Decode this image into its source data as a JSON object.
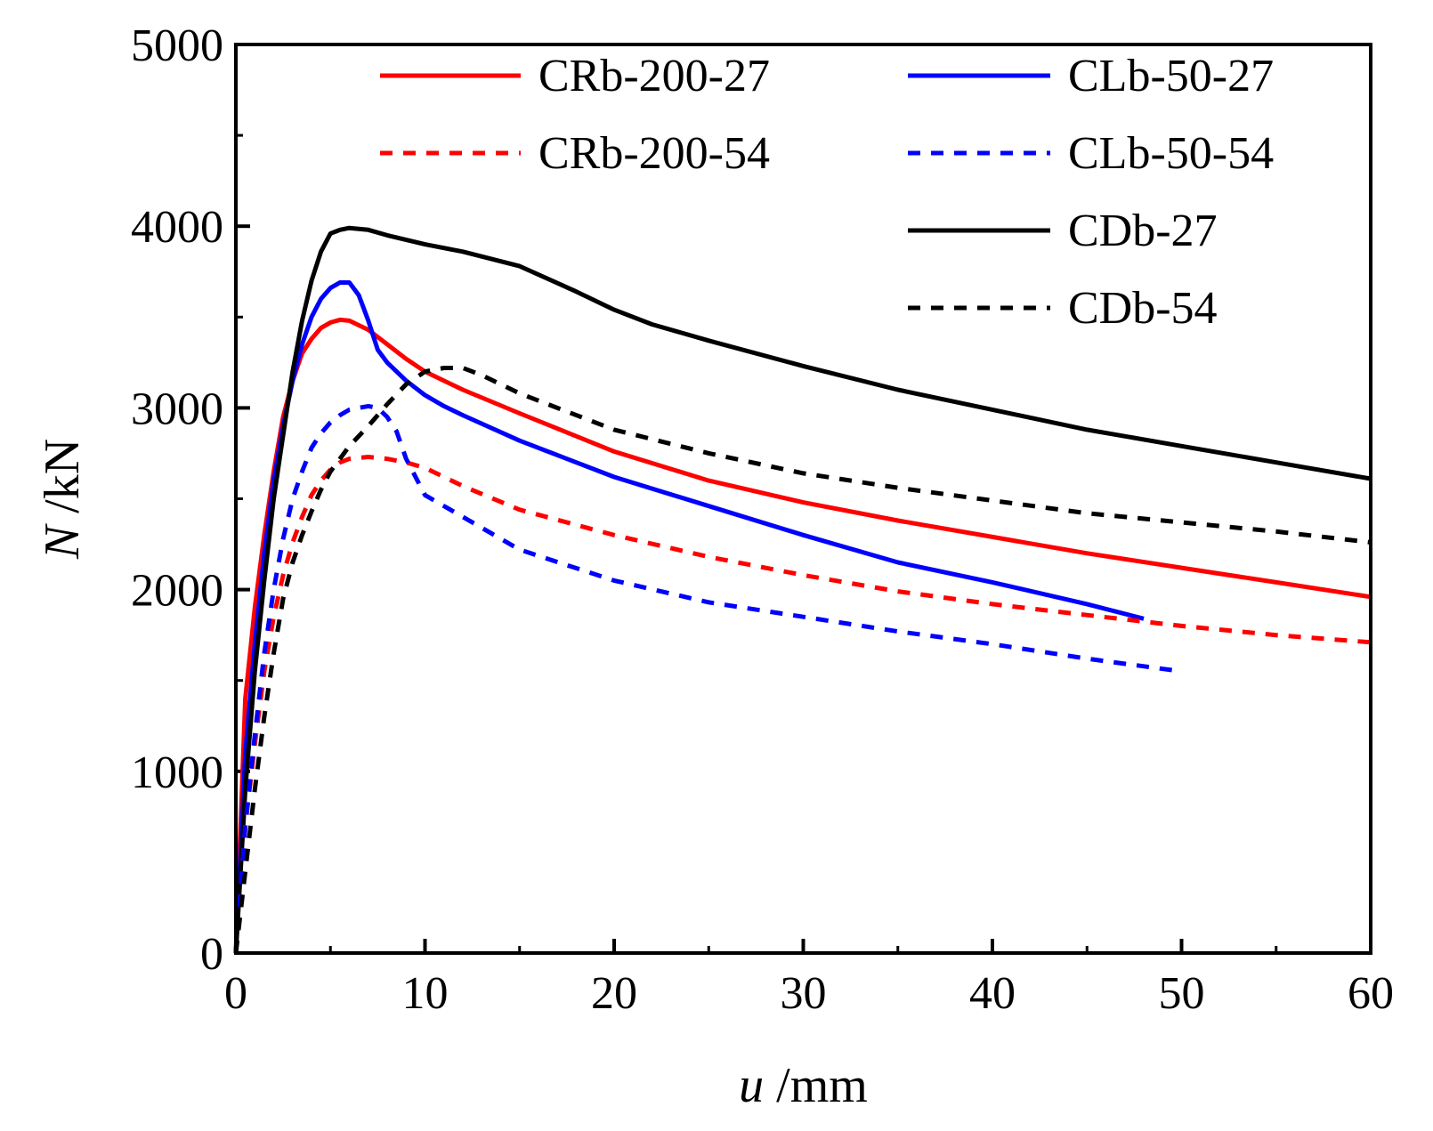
{
  "chart_data": {
    "type": "line",
    "title": "",
    "xlabel": {
      "symbol": "u",
      "unit": " /mm"
    },
    "ylabel": {
      "symbol": "N",
      "unit": " /kN"
    },
    "xlim": [
      0,
      60
    ],
    "ylim": [
      0,
      5000
    ],
    "xticks": [
      0,
      10,
      20,
      30,
      40,
      50,
      60
    ],
    "yticks": [
      0,
      1000,
      2000,
      3000,
      4000,
      5000
    ],
    "xtick_labels": [
      "0",
      "10",
      "20",
      "30",
      "40",
      "50",
      "60"
    ],
    "ytick_labels": [
      "0",
      "1000",
      "2000",
      "3000",
      "4000",
      "5000"
    ],
    "grid": false,
    "legend_position": "top-right",
    "series": [
      {
        "name": "CRb-200-27",
        "color": "#ff0000",
        "style": "solid",
        "x": [
          0,
          0.5,
          1,
          1.5,
          2,
          2.5,
          3,
          3.5,
          4,
          4.5,
          5,
          5.5,
          6,
          7,
          8,
          9,
          10,
          12,
          15,
          20,
          25,
          30,
          35,
          40,
          45,
          50,
          55,
          60
        ],
        "y": [
          0,
          1400,
          1900,
          2300,
          2650,
          2950,
          3150,
          3300,
          3380,
          3440,
          3470,
          3485,
          3480,
          3430,
          3350,
          3270,
          3200,
          3100,
          2970,
          2760,
          2600,
          2480,
          2380,
          2290,
          2200,
          2120,
          2040,
          1960
        ]
      },
      {
        "name": "CLb-50-27",
        "color": "#0000ff",
        "style": "solid",
        "x": [
          0,
          0.5,
          1,
          1.5,
          2,
          2.5,
          3,
          3.5,
          4,
          4.5,
          5,
          5.5,
          6,
          6.5,
          7,
          7.5,
          8,
          9,
          10,
          11,
          12,
          15,
          20,
          25,
          30,
          35,
          40,
          45,
          48
        ],
        "y": [
          0,
          1100,
          1700,
          2200,
          2600,
          2900,
          3150,
          3350,
          3500,
          3600,
          3660,
          3690,
          3690,
          3620,
          3480,
          3320,
          3250,
          3150,
          3070,
          3010,
          2960,
          2820,
          2620,
          2460,
          2300,
          2150,
          2040,
          1920,
          1840
        ]
      },
      {
        "name": "CDb-27",
        "color": "#000000",
        "style": "solid",
        "x": [
          0,
          0.5,
          1,
          1.5,
          2,
          2.5,
          3,
          3.5,
          4,
          4.5,
          5,
          5.5,
          6,
          7,
          8,
          10,
          12,
          15,
          18,
          20,
          22,
          25,
          30,
          35,
          40,
          45,
          50,
          55,
          60
        ],
        "y": [
          0,
          900,
          1550,
          2050,
          2500,
          2850,
          3200,
          3480,
          3700,
          3860,
          3960,
          3980,
          3990,
          3980,
          3950,
          3900,
          3860,
          3780,
          3640,
          3540,
          3460,
          3370,
          3230,
          3100,
          2990,
          2880,
          2790,
          2700,
          2610
        ]
      },
      {
        "name": "CRb-200-54",
        "color": "#ff0000",
        "style": "dotted",
        "x": [
          0,
          0.5,
          1,
          1.5,
          2,
          2.5,
          3,
          3.5,
          4,
          4.5,
          5,
          5.5,
          6,
          7,
          8,
          9,
          10,
          12,
          15,
          20,
          25,
          30,
          35,
          40,
          45,
          50,
          55,
          60
        ],
        "y": [
          0,
          700,
          1150,
          1550,
          1850,
          2080,
          2260,
          2400,
          2520,
          2600,
          2660,
          2700,
          2720,
          2730,
          2720,
          2700,
          2670,
          2570,
          2440,
          2300,
          2180,
          2080,
          1990,
          1920,
          1860,
          1800,
          1750,
          1710
        ]
      },
      {
        "name": "CLb-50-54",
        "color": "#0000ff",
        "style": "dotted",
        "x": [
          0,
          0.5,
          1,
          1.5,
          2,
          2.5,
          3,
          3.5,
          4,
          4.5,
          5,
          5.5,
          6,
          6.5,
          7,
          7.5,
          8,
          8.5,
          9,
          10,
          12,
          15,
          20,
          25,
          30,
          35,
          40,
          45,
          50
        ],
        "y": [
          0,
          700,
          1200,
          1650,
          2000,
          2280,
          2500,
          2650,
          2780,
          2860,
          2920,
          2960,
          2990,
          3000,
          3010,
          3000,
          2950,
          2870,
          2720,
          2520,
          2400,
          2220,
          2050,
          1930,
          1850,
          1770,
          1700,
          1620,
          1550
        ]
      },
      {
        "name": "CDb-54",
        "color": "#000000",
        "style": "dotted",
        "x": [
          0,
          0.5,
          1,
          1.5,
          2,
          2.5,
          3,
          3.5,
          4,
          4.5,
          5,
          5.5,
          6,
          7,
          8,
          9,
          10,
          11,
          12,
          13,
          15,
          20,
          25,
          30,
          35,
          40,
          45,
          50,
          55,
          60
        ],
        "y": [
          0,
          450,
          900,
          1300,
          1650,
          1950,
          2150,
          2300,
          2430,
          2550,
          2650,
          2720,
          2790,
          2900,
          3020,
          3130,
          3200,
          3220,
          3220,
          3180,
          3080,
          2880,
          2750,
          2640,
          2560,
          2490,
          2420,
          2370,
          2320,
          2260
        ]
      }
    ]
  }
}
